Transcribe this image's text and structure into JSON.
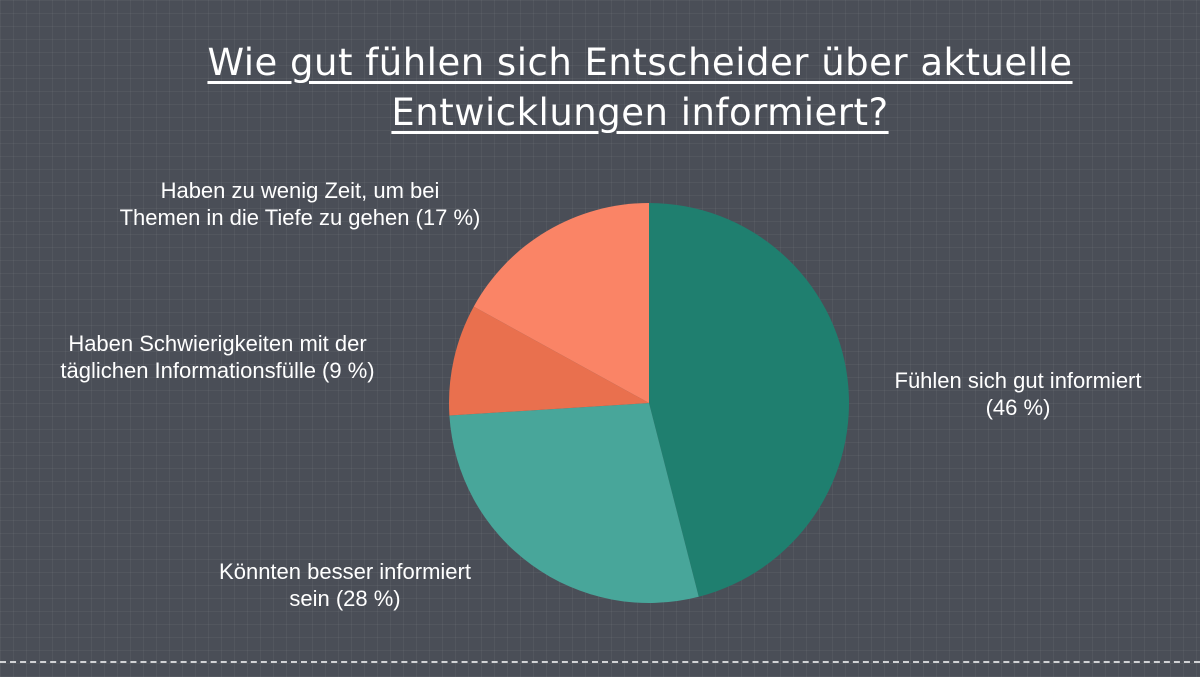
{
  "title_lines": [
    "Wie gut fühlen sich Entscheider über aktuelle",
    "Entwicklungen informiert?"
  ],
  "chart_data": {
    "type": "pie",
    "title": "Wie gut fühlen sich Entscheider über aktuelle Entwicklungen informiert?",
    "slices": [
      {
        "label": "Fühlen sich gut informiert (46 %)",
        "value": 46,
        "color": "#1f7f6f"
      },
      {
        "label": "Könnten besser informiert sein (28 %)",
        "value": 28,
        "color": "#48a69a"
      },
      {
        "label": "Haben Schwierigkeiten mit der täglichen Informationsfülle (9 %)",
        "value": 9,
        "color": "#e9704e"
      },
      {
        "label": "Haben zu wenig Zeit, um bei Themen in die Tiefe zu gehen (17 %)",
        "value": 17,
        "color": "#fa8466"
      }
    ]
  },
  "labels": {
    "good": [
      "Fühlen sich gut informiert",
      "(46 %)"
    ],
    "better": [
      "Könnten besser informiert",
      "sein (28 %)"
    ],
    "difficulties": [
      "Haben Schwierigkeiten mit der",
      "täglichen Informationsfülle (9 %)"
    ],
    "time": [
      "Haben zu wenig Zeit, um bei",
      "Themen in die Tiefe zu gehen (17 %)"
    ]
  }
}
